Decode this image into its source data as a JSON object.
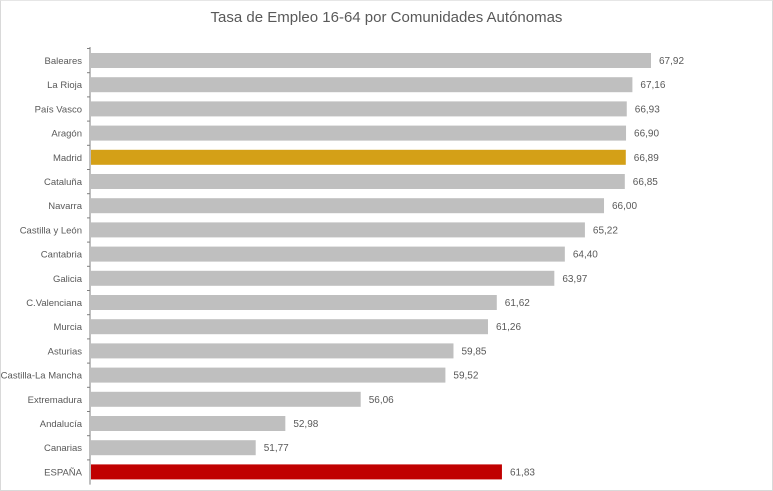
{
  "chart_data": {
    "type": "bar",
    "orientation": "horizontal",
    "title": "Tasa de Empleo 16-64 por Comunidades  Autónomas",
    "categories": [
      "Baleares",
      "La Rioja",
      "País Vasco",
      "Aragón",
      "Madrid",
      "Cataluña",
      "Navarra",
      "Castilla y León",
      "Cantabria",
      "Galicia",
      "C.Valenciana",
      "Murcia",
      "Asturias",
      "Castilla-La Mancha",
      "Extremadura",
      "Andalucía",
      "Canarias",
      "ESPAÑA"
    ],
    "values": [
      67.92,
      67.16,
      66.93,
      66.9,
      66.89,
      66.85,
      66.0,
      65.22,
      64.4,
      63.97,
      61.62,
      61.26,
      59.85,
      59.52,
      56.06,
      52.98,
      51.77,
      61.83
    ],
    "value_labels": [
      "67,92",
      "67,16",
      "66,93",
      "66,90",
      "66,89",
      "66,85",
      "66,00",
      "65,22",
      "64,40",
      "63,97",
      "61,62",
      "61,26",
      "59,85",
      "59,52",
      "56,06",
      "52,98",
      "51,77",
      "61,83"
    ],
    "highlight": {
      "Madrid": "#d4a017",
      "ESPAÑA": "#c00000"
    },
    "default_color": "#bfbfbf",
    "xlim": [
      45,
      70
    ],
    "grid": false,
    "legend": "none"
  }
}
